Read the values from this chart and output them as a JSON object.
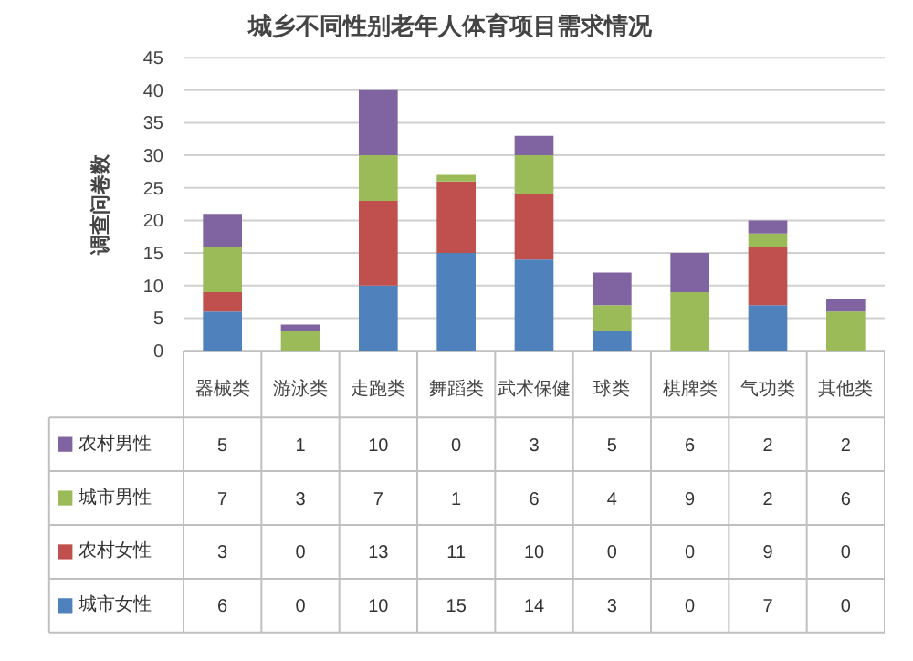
{
  "chart_data": {
    "type": "bar",
    "title": "城乡不同性别老年人体育项目需求情况",
    "ylabel": "调查问卷数",
    "categories": [
      "器械类",
      "游泳类",
      "走跑类",
      "舞蹈类",
      "武术保健",
      "球类",
      "棋牌类",
      "气功类",
      "其他类"
    ],
    "stacked": true,
    "series": [
      {
        "name": "城市女性",
        "color": "#4f81bd",
        "values": [
          6,
          0,
          10,
          15,
          14,
          3,
          0,
          7,
          0
        ]
      },
      {
        "name": "农村女性",
        "color": "#c0504d",
        "values": [
          3,
          0,
          13,
          11,
          10,
          0,
          0,
          9,
          0
        ]
      },
      {
        "name": "城市男性",
        "color": "#9bbb59",
        "values": [
          7,
          3,
          7,
          1,
          6,
          4,
          9,
          2,
          6
        ]
      },
      {
        "name": "农村男性",
        "color": "#8064a2",
        "values": [
          5,
          1,
          10,
          0,
          3,
          5,
          6,
          2,
          2
        ]
      }
    ],
    "ylim": [
      0,
      45
    ],
    "yticks": [
      0,
      5,
      10,
      15,
      20,
      25,
      30,
      35,
      40,
      45
    ],
    "grid": "y",
    "data_labels": true,
    "legend": "bottom"
  }
}
